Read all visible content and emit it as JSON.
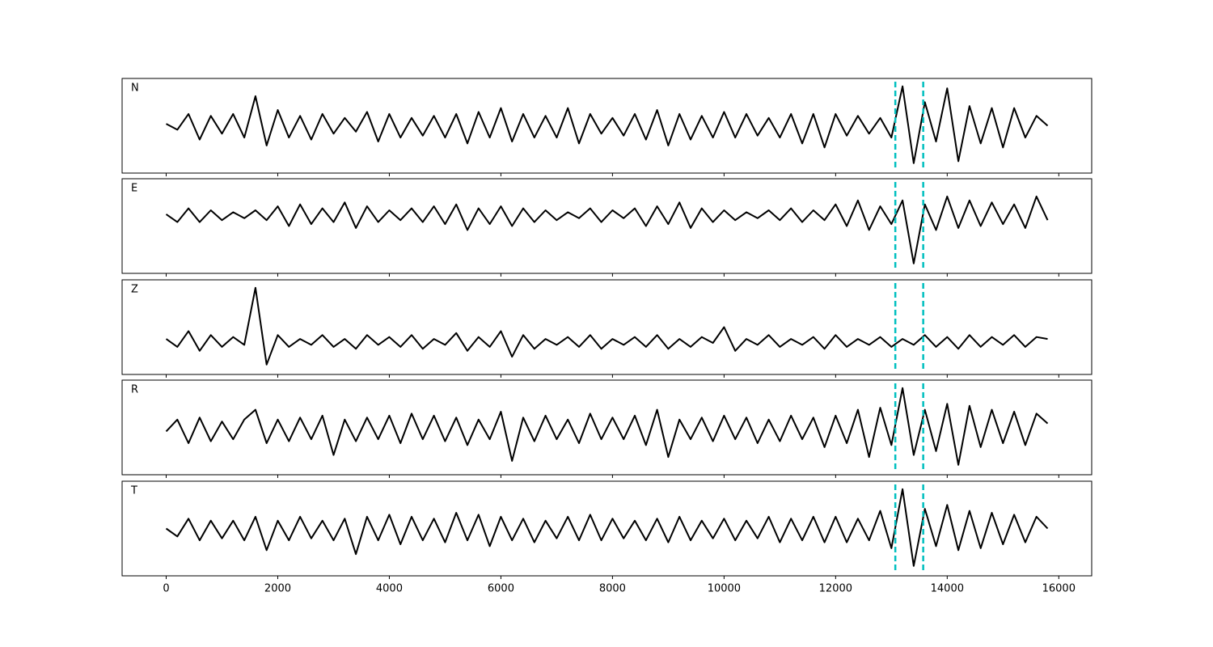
{
  "chart_data": {
    "type": "line",
    "layout": "stacked-panels",
    "x": [
      0,
      200,
      400,
      600,
      800,
      1000,
      1200,
      1400,
      1600,
      1800,
      2000,
      2200,
      2400,
      2600,
      2800,
      3000,
      3200,
      3400,
      3600,
      3800,
      4000,
      4200,
      4400,
      4600,
      4800,
      5000,
      5200,
      5400,
      5600,
      5800,
      6000,
      6200,
      6400,
      6600,
      6800,
      7000,
      7200,
      7400,
      7600,
      7800,
      8000,
      8200,
      8400,
      8600,
      8800,
      9000,
      9200,
      9400,
      9600,
      9800,
      10000,
      10200,
      10400,
      10600,
      10800,
      11000,
      11200,
      11400,
      11600,
      11800,
      12000,
      12200,
      12400,
      12600,
      12800,
      13000,
      13200,
      13400,
      13600,
      13800,
      14000,
      14200,
      14400,
      14600,
      14800,
      15000,
      15200,
      15400,
      15600,
      15800
    ],
    "xlim": [
      -790,
      16590
    ],
    "xticks": [
      0,
      2000,
      4000,
      6000,
      8000,
      10000,
      12000,
      14000,
      16000
    ],
    "ylim": [
      -1.2,
      1.2
    ],
    "vlines": [
      13070,
      13570
    ],
    "vline_color": "#00bfbf",
    "series": [
      {
        "name": "N",
        "color": "#000000",
        "values": [
          0.05,
          -0.1,
          0.3,
          -0.35,
          0.25,
          -0.2,
          0.3,
          -0.3,
          0.75,
          -0.5,
          0.4,
          -0.3,
          0.25,
          -0.35,
          0.3,
          -0.2,
          0.2,
          -0.15,
          0.35,
          -0.4,
          0.3,
          -0.3,
          0.2,
          -0.25,
          0.25,
          -0.3,
          0.3,
          -0.45,
          0.35,
          -0.3,
          0.45,
          -0.4,
          0.3,
          -0.3,
          0.25,
          -0.3,
          0.45,
          -0.45,
          0.3,
          -0.2,
          0.2,
          -0.25,
          0.3,
          -0.35,
          0.4,
          -0.5,
          0.3,
          -0.35,
          0.25,
          -0.3,
          0.35,
          -0.3,
          0.3,
          -0.25,
          0.2,
          -0.3,
          0.3,
          -0.45,
          0.3,
          -0.55,
          0.3,
          -0.25,
          0.25,
          -0.2,
          0.2,
          -0.3,
          1.0,
          -0.95,
          0.6,
          -0.4,
          0.95,
          -0.9,
          0.5,
          -0.45,
          0.45,
          -0.55,
          0.45,
          -0.3,
          0.25,
          0.0
        ]
      },
      {
        "name": "E",
        "color": "#000000",
        "values": [
          0.3,
          0.1,
          0.45,
          0.1,
          0.4,
          0.15,
          0.35,
          0.2,
          0.4,
          0.15,
          0.5,
          0.0,
          0.55,
          0.05,
          0.45,
          0.1,
          0.6,
          -0.05,
          0.5,
          0.1,
          0.4,
          0.15,
          0.45,
          0.1,
          0.5,
          0.05,
          0.55,
          -0.1,
          0.45,
          0.05,
          0.5,
          0.0,
          0.45,
          0.1,
          0.4,
          0.15,
          0.35,
          0.2,
          0.45,
          0.1,
          0.4,
          0.2,
          0.45,
          0.0,
          0.5,
          0.05,
          0.6,
          -0.05,
          0.45,
          0.1,
          0.4,
          0.15,
          0.35,
          0.2,
          0.4,
          0.15,
          0.45,
          0.1,
          0.4,
          0.15,
          0.55,
          0.0,
          0.65,
          -0.1,
          0.5,
          0.05,
          0.65,
          -0.95,
          0.55,
          -0.1,
          0.75,
          -0.05,
          0.65,
          0.0,
          0.6,
          0.05,
          0.55,
          -0.05,
          0.75,
          0.15
        ]
      },
      {
        "name": "Z",
        "color": "#000000",
        "values": [
          -0.3,
          -0.5,
          -0.1,
          -0.6,
          -0.2,
          -0.5,
          -0.25,
          -0.45,
          1.0,
          -0.95,
          -0.2,
          -0.5,
          -0.3,
          -0.45,
          -0.2,
          -0.5,
          -0.3,
          -0.55,
          -0.2,
          -0.45,
          -0.25,
          -0.5,
          -0.2,
          -0.55,
          -0.3,
          -0.45,
          -0.15,
          -0.6,
          -0.25,
          -0.5,
          -0.1,
          -0.75,
          -0.2,
          -0.55,
          -0.3,
          -0.45,
          -0.25,
          -0.5,
          -0.2,
          -0.55,
          -0.3,
          -0.45,
          -0.25,
          -0.5,
          -0.2,
          -0.55,
          -0.3,
          -0.5,
          -0.25,
          -0.4,
          0.0,
          -0.6,
          -0.3,
          -0.45,
          -0.2,
          -0.5,
          -0.3,
          -0.45,
          -0.25,
          -0.55,
          -0.2,
          -0.5,
          -0.3,
          -0.45,
          -0.25,
          -0.5,
          -0.3,
          -0.45,
          -0.2,
          -0.5,
          -0.25,
          -0.55,
          -0.2,
          -0.5,
          -0.25,
          -0.45,
          -0.2,
          -0.5,
          -0.25,
          -0.3
        ]
      },
      {
        "name": "R",
        "color": "#000000",
        "values": [
          -0.1,
          0.2,
          -0.4,
          0.25,
          -0.35,
          0.15,
          -0.3,
          0.2,
          0.45,
          -0.4,
          0.2,
          -0.35,
          0.25,
          -0.3,
          0.3,
          -0.7,
          0.2,
          -0.35,
          0.25,
          -0.3,
          0.3,
          -0.4,
          0.35,
          -0.3,
          0.3,
          -0.35,
          0.25,
          -0.45,
          0.2,
          -0.3,
          0.4,
          -0.85,
          0.25,
          -0.35,
          0.3,
          -0.3,
          0.2,
          -0.4,
          0.35,
          -0.3,
          0.25,
          -0.3,
          0.3,
          -0.45,
          0.45,
          -0.75,
          0.2,
          -0.3,
          0.25,
          -0.35,
          0.3,
          -0.3,
          0.25,
          -0.4,
          0.2,
          -0.35,
          0.3,
          -0.3,
          0.25,
          -0.5,
          0.3,
          -0.4,
          0.45,
          -0.75,
          0.5,
          -0.45,
          1.0,
          -0.7,
          0.45,
          -0.6,
          0.6,
          -0.95,
          0.55,
          -0.5,
          0.45,
          -0.4,
          0.4,
          -0.45,
          0.35,
          0.1
        ]
      },
      {
        "name": "T",
        "color": "#000000",
        "values": [
          0.0,
          -0.2,
          0.25,
          -0.3,
          0.2,
          -0.25,
          0.2,
          -0.3,
          0.3,
          -0.55,
          0.2,
          -0.3,
          0.3,
          -0.25,
          0.2,
          -0.3,
          0.25,
          -0.65,
          0.3,
          -0.3,
          0.35,
          -0.4,
          0.3,
          -0.3,
          0.25,
          -0.35,
          0.4,
          -0.3,
          0.35,
          -0.45,
          0.3,
          -0.3,
          0.25,
          -0.35,
          0.2,
          -0.25,
          0.3,
          -0.3,
          0.35,
          -0.3,
          0.25,
          -0.25,
          0.2,
          -0.3,
          0.25,
          -0.35,
          0.3,
          -0.3,
          0.2,
          -0.25,
          0.25,
          -0.3,
          0.2,
          -0.25,
          0.3,
          -0.35,
          0.25,
          -0.3,
          0.3,
          -0.35,
          0.3,
          -0.35,
          0.25,
          -0.3,
          0.45,
          -0.5,
          1.0,
          -0.95,
          0.5,
          -0.45,
          0.6,
          -0.55,
          0.45,
          -0.5,
          0.4,
          -0.4,
          0.35,
          -0.35,
          0.3,
          0.0
        ]
      }
    ]
  }
}
